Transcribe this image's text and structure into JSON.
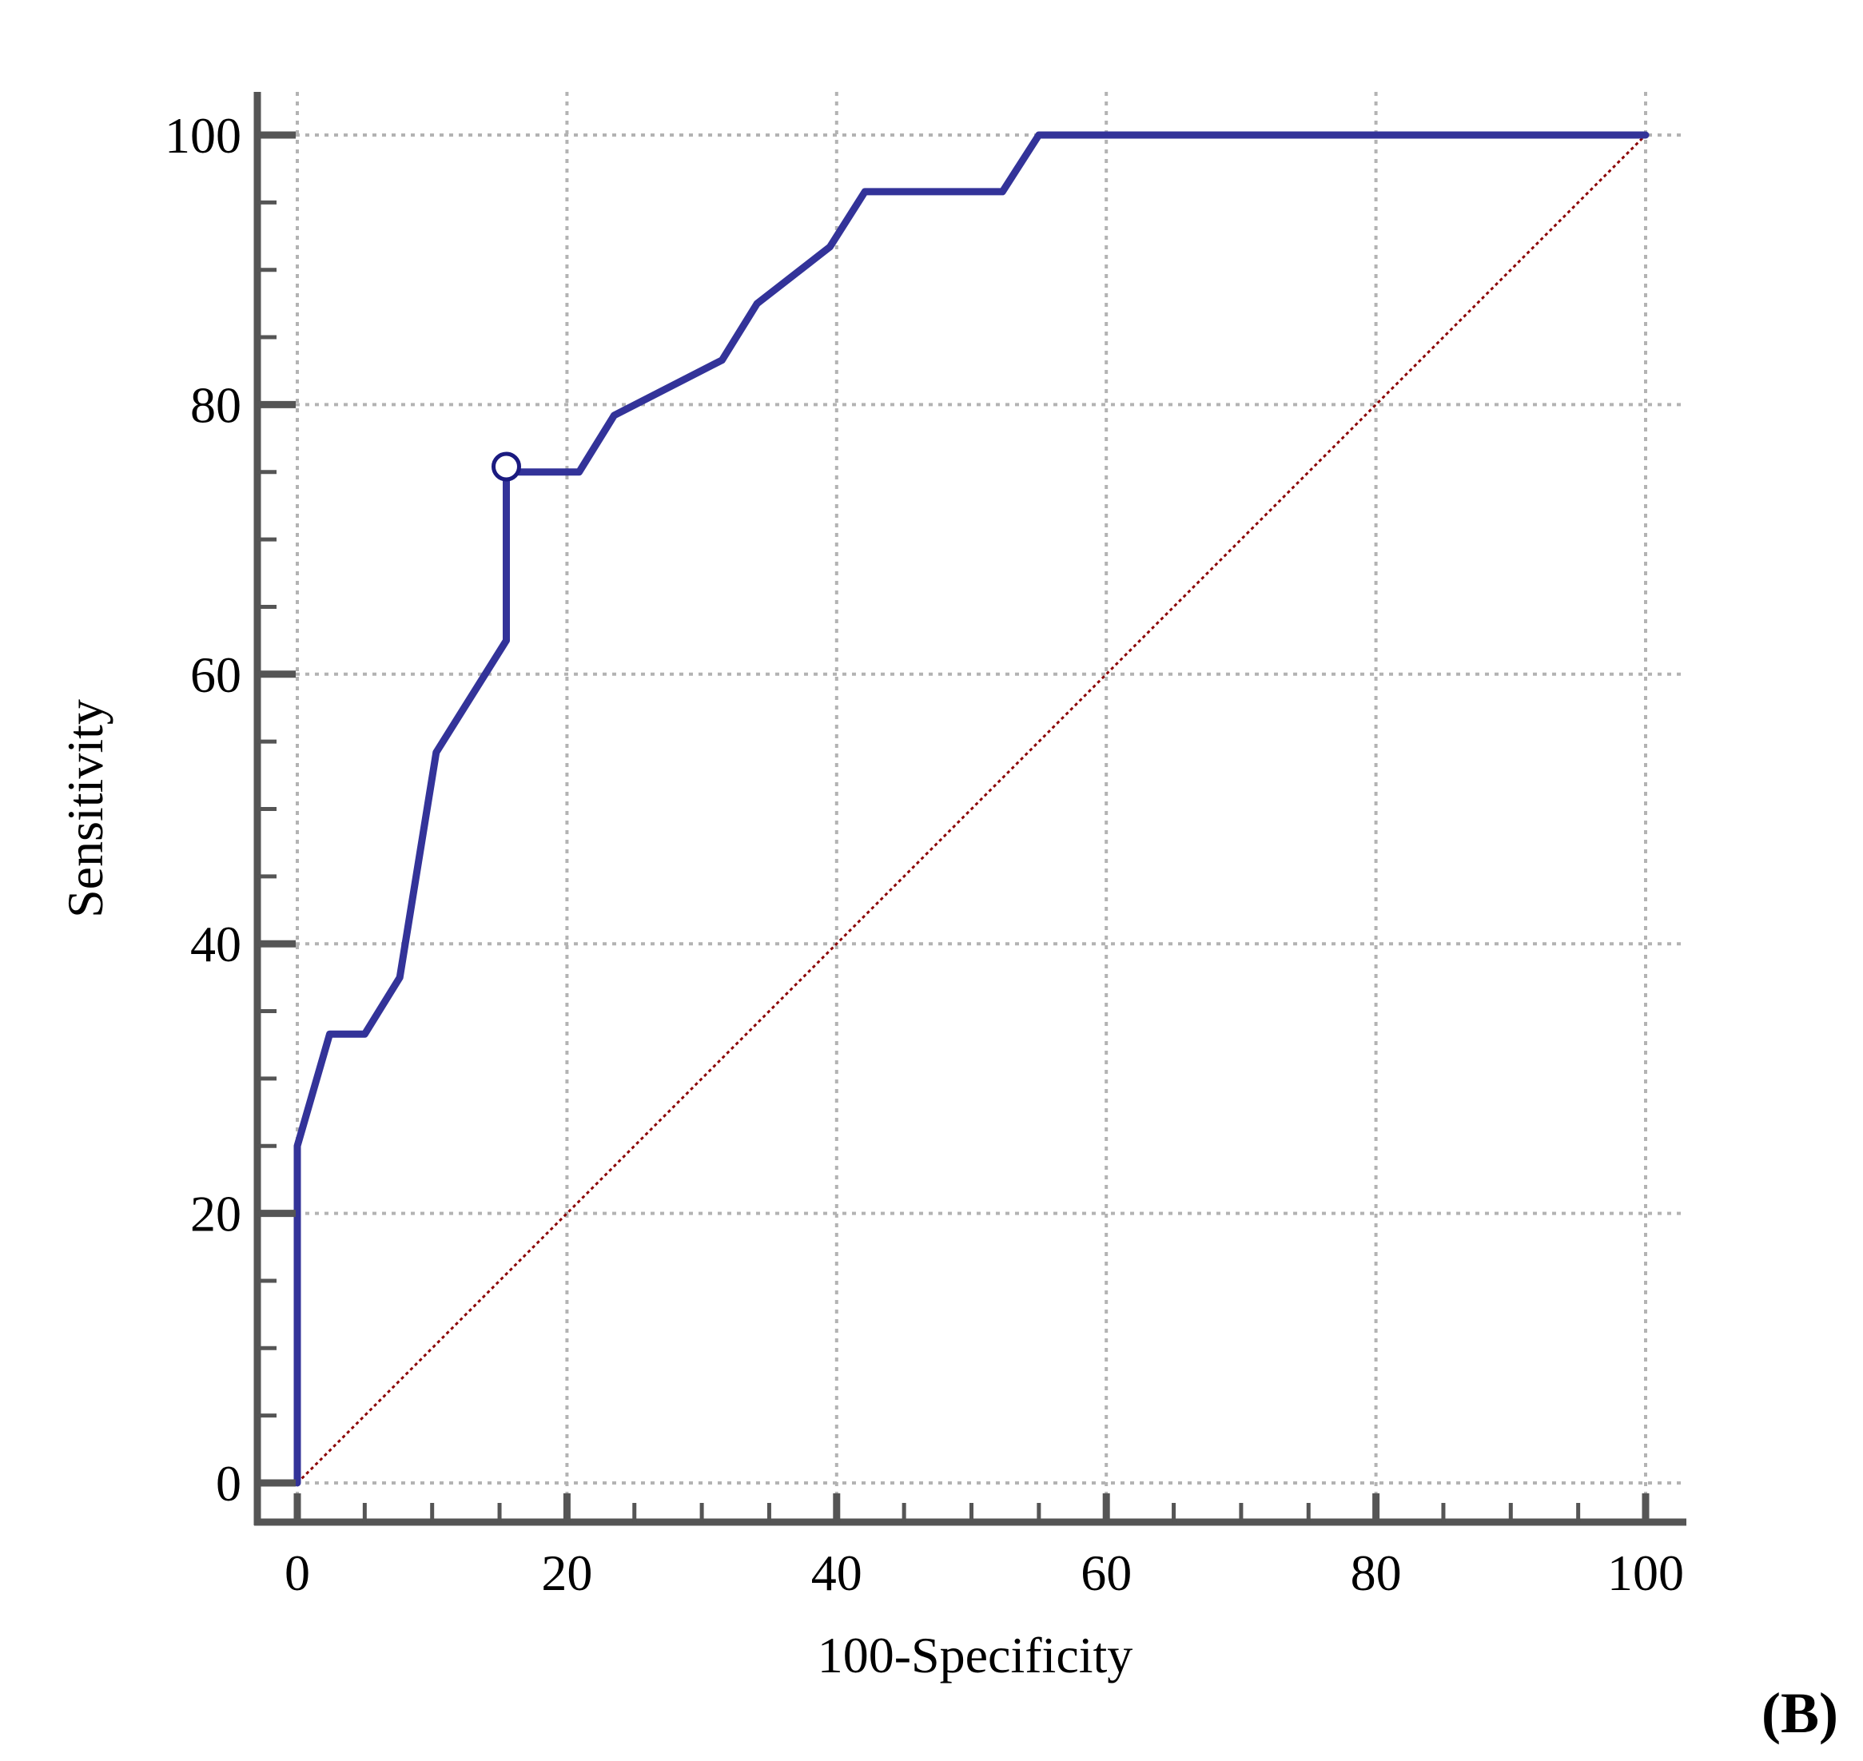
{
  "panel_label": "(B)",
  "chart_data": {
    "type": "line",
    "title": "",
    "xlabel": "100-Specificity",
    "ylabel": "Sensitivity",
    "xlim": [
      0,
      100
    ],
    "ylim": [
      0,
      100
    ],
    "xticks": [
      0,
      20,
      40,
      60,
      80,
      100
    ],
    "yticks": [
      0,
      20,
      40,
      60,
      80,
      100
    ],
    "minor_tick_step": 5,
    "grid": true,
    "legend": "none",
    "colors": {
      "roc": "#333399",
      "diagonal": "#8B0000",
      "axis": "#555555",
      "grid": "#b3b3b3",
      "marker_fill": "#ffffff",
      "marker_stroke": "#1a1a80"
    },
    "series": [
      {
        "x": [
          0,
          0,
          2.4,
          5,
          7.6,
          10.3,
          15.5,
          15.5,
          20.9,
          23.5,
          31.5,
          34.1,
          39.5,
          42.1,
          52.3,
          55,
          100
        ],
        "y": [
          0,
          25,
          33.3,
          33.3,
          37.5,
          54.2,
          62.5,
          75,
          75,
          79.2,
          83.3,
          87.5,
          91.7,
          95.8,
          95.8,
          100,
          100
        ]
      },
      {
        "x": [
          0,
          100
        ],
        "y": [
          0,
          100
        ]
      }
    ],
    "markers": [
      {
        "x": 15.5,
        "y": 75.4
      }
    ]
  }
}
